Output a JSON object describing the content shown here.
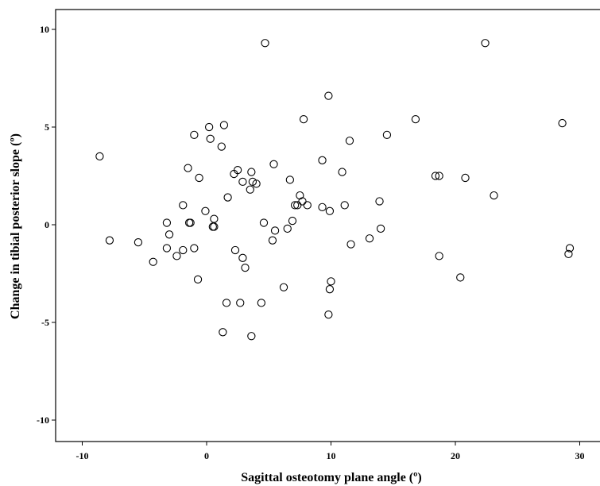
{
  "chart_data": {
    "type": "scatter",
    "title": "",
    "xlabel": "Sagittal osteotomy plane angle (º)",
    "ylabel": "Change in tibial posterior slope (º)",
    "xlim": [
      -12,
      32
    ],
    "ylim": [
      -11,
      11
    ],
    "x_ticks": [
      -10,
      0,
      10,
      20,
      30
    ],
    "y_ticks": [
      -10,
      -5,
      0,
      5,
      10
    ],
    "x_tick_labels": [
      "-10",
      "0",
      "10",
      "20",
      "30"
    ],
    "y_tick_labels": [
      "-10",
      "-5",
      "0",
      "5",
      "10"
    ],
    "grid": false,
    "legend": "none",
    "marker": "open-circle",
    "points": [
      {
        "x": 4.7,
        "y": 9.3
      },
      {
        "x": 22.4,
        "y": 9.3
      },
      {
        "x": 9.8,
        "y": 6.6
      },
      {
        "x": 7.8,
        "y": 5.4
      },
      {
        "x": 16.8,
        "y": 5.4
      },
      {
        "x": 28.6,
        "y": 5.2
      },
      {
        "x": 0.2,
        "y": 5.0
      },
      {
        "x": 1.4,
        "y": 5.1
      },
      {
        "x": -1.0,
        "y": 4.6
      },
      {
        "x": 0.3,
        "y": 4.4
      },
      {
        "x": 14.5,
        "y": 4.6
      },
      {
        "x": 11.5,
        "y": 4.3
      },
      {
        "x": 1.2,
        "y": 4.0
      },
      {
        "x": -8.6,
        "y": 3.5
      },
      {
        "x": 9.3,
        "y": 3.3
      },
      {
        "x": 5.4,
        "y": 3.1
      },
      {
        "x": -1.5,
        "y": 2.9
      },
      {
        "x": 2.5,
        "y": 2.8
      },
      {
        "x": 3.6,
        "y": 2.7
      },
      {
        "x": 10.9,
        "y": 2.7
      },
      {
        "x": 2.2,
        "y": 2.6
      },
      {
        "x": 18.4,
        "y": 2.5
      },
      {
        "x": 18.7,
        "y": 2.5
      },
      {
        "x": -0.6,
        "y": 2.4
      },
      {
        "x": 20.8,
        "y": 2.4
      },
      {
        "x": 6.7,
        "y": 2.3
      },
      {
        "x": 2.9,
        "y": 2.2
      },
      {
        "x": 3.7,
        "y": 2.2
      },
      {
        "x": 4.0,
        "y": 2.1
      },
      {
        "x": 3.5,
        "y": 1.8
      },
      {
        "x": 23.1,
        "y": 1.5
      },
      {
        "x": 7.5,
        "y": 1.5
      },
      {
        "x": 1.7,
        "y": 1.4
      },
      {
        "x": 7.7,
        "y": 1.2
      },
      {
        "x": 13.9,
        "y": 1.2
      },
      {
        "x": 7.1,
        "y": 1.0
      },
      {
        "x": 7.3,
        "y": 1.0
      },
      {
        "x": 8.1,
        "y": 1.0
      },
      {
        "x": 11.1,
        "y": 1.0
      },
      {
        "x": -1.9,
        "y": 1.0
      },
      {
        "x": 9.3,
        "y": 0.9
      },
      {
        "x": -0.1,
        "y": 0.7
      },
      {
        "x": 9.9,
        "y": 0.7
      },
      {
        "x": 0.6,
        "y": 0.3
      },
      {
        "x": 6.9,
        "y": 0.2
      },
      {
        "x": -3.2,
        "y": 0.1
      },
      {
        "x": -1.4,
        "y": 0.1
      },
      {
        "x": -1.3,
        "y": 0.1
      },
      {
        "x": 4.6,
        "y": 0.1
      },
      {
        "x": 0.5,
        "y": -0.1
      },
      {
        "x": 0.6,
        "y": -0.1
      },
      {
        "x": 14.0,
        "y": -0.2
      },
      {
        "x": 6.5,
        "y": -0.2
      },
      {
        "x": 5.5,
        "y": -0.3
      },
      {
        "x": -3.0,
        "y": -0.5
      },
      {
        "x": 13.1,
        "y": -0.7
      },
      {
        "x": -7.8,
        "y": -0.8
      },
      {
        "x": 5.3,
        "y": -0.8
      },
      {
        "x": -5.5,
        "y": -0.9
      },
      {
        "x": 11.6,
        "y": -1.0
      },
      {
        "x": -3.2,
        "y": -1.2
      },
      {
        "x": -1.0,
        "y": -1.2
      },
      {
        "x": 29.2,
        "y": -1.2
      },
      {
        "x": -1.9,
        "y": -1.3
      },
      {
        "x": 2.3,
        "y": -1.3
      },
      {
        "x": 29.1,
        "y": -1.5
      },
      {
        "x": -2.4,
        "y": -1.6
      },
      {
        "x": 18.7,
        "y": -1.6
      },
      {
        "x": 2.9,
        "y": -1.7
      },
      {
        "x": -4.3,
        "y": -1.9
      },
      {
        "x": 3.1,
        "y": -2.2
      },
      {
        "x": 20.4,
        "y": -2.7
      },
      {
        "x": -0.7,
        "y": -2.8
      },
      {
        "x": 10.0,
        "y": -2.9
      },
      {
        "x": 6.2,
        "y": -3.2
      },
      {
        "x": 9.9,
        "y": -3.3
      },
      {
        "x": 1.6,
        "y": -4.0
      },
      {
        "x": 2.7,
        "y": -4.0
      },
      {
        "x": 4.4,
        "y": -4.0
      },
      {
        "x": 9.8,
        "y": -4.6
      },
      {
        "x": 1.3,
        "y": -5.5
      },
      {
        "x": 3.6,
        "y": -5.7
      }
    ]
  }
}
